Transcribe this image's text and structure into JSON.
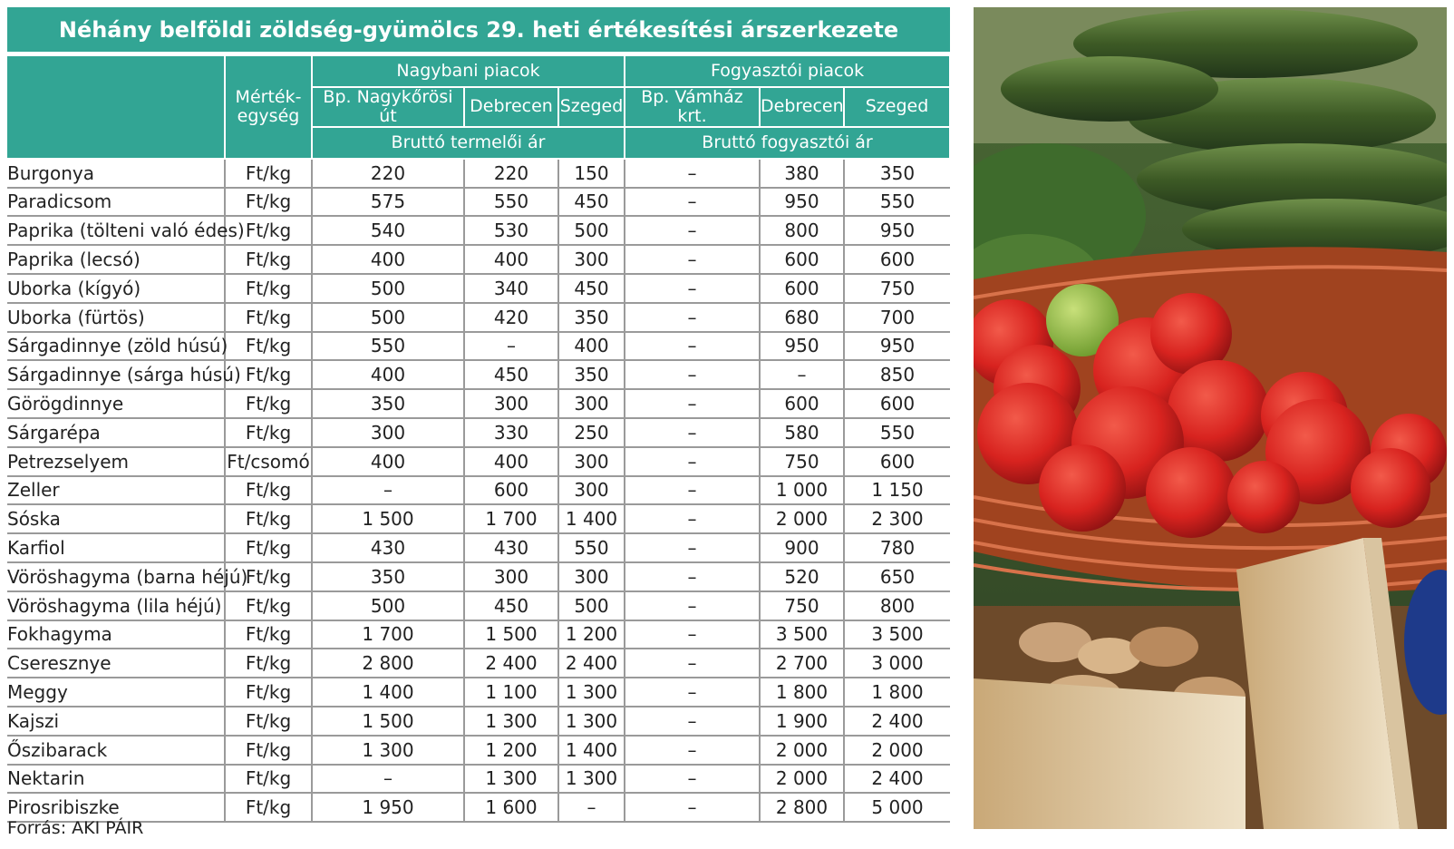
{
  "title": "Néhány belföldi zöldség-gyümölcs 29. heti értékesítési árszerkezete",
  "headers": {
    "unit": "Mérték-egység",
    "wholesale_group": "Nagybani piacok",
    "consumer_group": "Fogyasztói piacok",
    "markets": [
      "Bp. Nagykőrösi út",
      "Debrecen",
      "Szeged",
      "Bp. Vámház krt.",
      "Debrecen",
      "Szeged"
    ],
    "wholesale_price": "Bruttó termelői ár",
    "consumer_price": "Bruttó fogyasztói ár"
  },
  "rows": [
    {
      "name": "Burgonya",
      "unit": "Ft/kg",
      "v": [
        "220",
        "220",
        "150",
        "–",
        "380",
        "350"
      ]
    },
    {
      "name": "Paradicsom",
      "unit": "Ft/kg",
      "v": [
        "575",
        "550",
        "450",
        "–",
        "950",
        "550"
      ]
    },
    {
      "name": "Paprika (tölteni való édes)",
      "unit": "Ft/kg",
      "v": [
        "540",
        "530",
        "500",
        "–",
        "800",
        "950"
      ]
    },
    {
      "name": "Paprika (lecsó)",
      "unit": "Ft/kg",
      "v": [
        "400",
        "400",
        "300",
        "–",
        "600",
        "600"
      ]
    },
    {
      "name": "Uborka (kígyó)",
      "unit": "Ft/kg",
      "v": [
        "500",
        "340",
        "450",
        "–",
        "600",
        "750"
      ]
    },
    {
      "name": "Uborka (fürtös)",
      "unit": "Ft/kg",
      "v": [
        "500",
        "420",
        "350",
        "–",
        "680",
        "700"
      ]
    },
    {
      "name": "Sárgadinnye (zöld húsú)",
      "unit": "Ft/kg",
      "v": [
        "550",
        "–",
        "400",
        "–",
        "950",
        "950"
      ]
    },
    {
      "name": "Sárgadinnye (sárga húsú)",
      "unit": "Ft/kg",
      "v": [
        "400",
        "450",
        "350",
        "–",
        "–",
        "850"
      ]
    },
    {
      "name": "Görögdinnye",
      "unit": "Ft/kg",
      "v": [
        "350",
        "300",
        "300",
        "–",
        "600",
        "600"
      ]
    },
    {
      "name": "Sárgarépa",
      "unit": "Ft/kg",
      "v": [
        "300",
        "330",
        "250",
        "–",
        "580",
        "550"
      ]
    },
    {
      "name": "Petrezselyem",
      "unit": "Ft/csomó",
      "v": [
        "400",
        "400",
        "300",
        "–",
        "750",
        "600"
      ]
    },
    {
      "name": "Zeller",
      "unit": "Ft/kg",
      "v": [
        "–",
        "600",
        "300",
        "–",
        "1 000",
        "1 150"
      ]
    },
    {
      "name": "Sóska",
      "unit": "Ft/kg",
      "v": [
        "1 500",
        "1 700",
        "1 400",
        "–",
        "2 000",
        "2 300"
      ]
    },
    {
      "name": "Karfiol",
      "unit": "Ft/kg",
      "v": [
        "430",
        "430",
        "550",
        "–",
        "900",
        "780"
      ]
    },
    {
      "name": "Vöröshagyma (barna héjú)",
      "unit": "Ft/kg",
      "v": [
        "350",
        "300",
        "300",
        "–",
        "520",
        "650"
      ]
    },
    {
      "name": "Vöröshagyma (lila héjú)",
      "unit": "Ft/kg",
      "v": [
        "500",
        "450",
        "500",
        "–",
        "750",
        "800"
      ]
    },
    {
      "name": "Fokhagyma",
      "unit": "Ft/kg",
      "v": [
        "1 700",
        "1 500",
        "1 200",
        "–",
        "3 500",
        "3 500"
      ]
    },
    {
      "name": "Cseresznye",
      "unit": "Ft/kg",
      "v": [
        "2 800",
        "2 400",
        "2 400",
        "–",
        "2 700",
        "3 000"
      ]
    },
    {
      "name": "Meggy",
      "unit": "Ft/kg",
      "v": [
        "1 400",
        "1 100",
        "1 300",
        "–",
        "1 800",
        "1 800"
      ]
    },
    {
      "name": "Kajszi",
      "unit": "Ft/kg",
      "v": [
        "1 500",
        "1 300",
        "1 300",
        "–",
        "1 900",
        "2 400"
      ]
    },
    {
      "name": "Őszibarack",
      "unit": "Ft/kg",
      "v": [
        "1 300",
        "1 200",
        "1 400",
        "–",
        "2 000",
        "2 000"
      ]
    },
    {
      "name": "Nektarin",
      "unit": "Ft/kg",
      "v": [
        "–",
        "1 300",
        "1 300",
        "–",
        "2 000",
        "2 400"
      ]
    },
    {
      "name": "Pirosribiszke",
      "unit": "Ft/kg",
      "v": [
        "1 950",
        "1 600",
        "–",
        "–",
        "2 800",
        "5 000"
      ]
    }
  ],
  "source": "Forrás: AKI PÁIR",
  "colors": {
    "header": "#32a594",
    "rule": "#9a9a9a"
  },
  "photo_subject": "market-produce-photo"
}
